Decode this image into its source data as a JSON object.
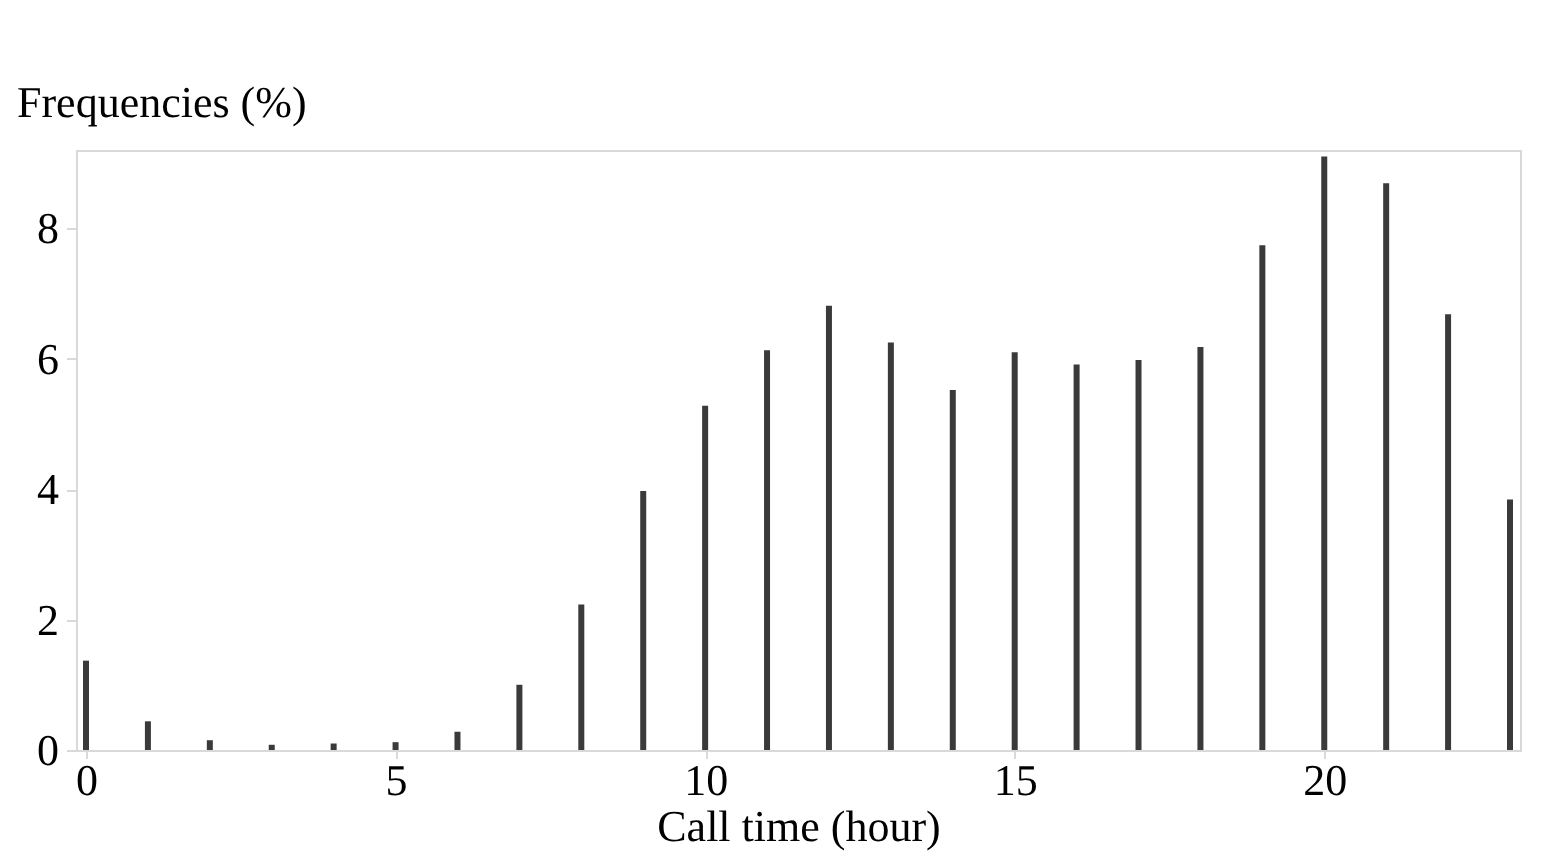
{
  "chart_data": {
    "type": "bar",
    "xlabel": "Call time (hour)",
    "ylabel": "Frequencies (%)",
    "x": [
      0,
      1,
      2,
      3,
      4,
      5,
      6,
      7,
      8,
      9,
      10,
      11,
      12,
      13,
      14,
      15,
      16,
      17,
      18,
      19,
      20,
      21,
      22,
      23
    ],
    "values": [
      1.37,
      0.44,
      0.15,
      0.08,
      0.1,
      0.12,
      0.28,
      1.0,
      2.23,
      3.97,
      5.28,
      6.13,
      6.81,
      6.25,
      5.52,
      6.1,
      5.91,
      5.98,
      6.18,
      7.74,
      9.1,
      8.69,
      6.68,
      3.84
    ],
    "color": "#3a3a3a",
    "xlim": [
      0,
      23
    ],
    "xticks": [
      0,
      5,
      10,
      15,
      20
    ],
    "ylim": [
      0,
      9.2
    ],
    "yticks": [
      0,
      2,
      4,
      6,
      8
    ],
    "grid": false
  }
}
